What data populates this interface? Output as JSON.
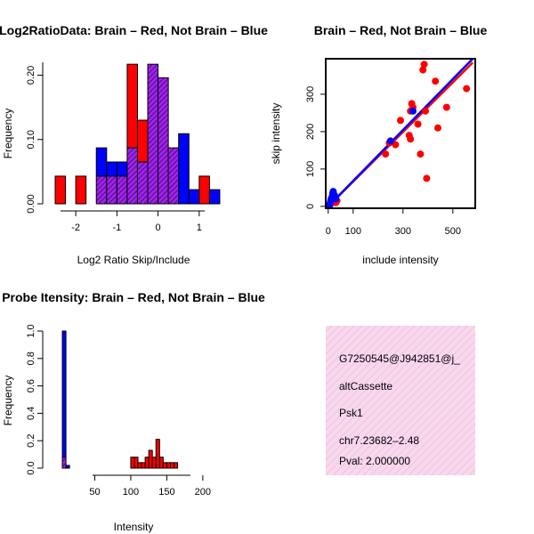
{
  "colors": {
    "red": "#ff0000",
    "blue": "#0000ff",
    "overlap": "#a020f0",
    "hatch": "#000000",
    "info_bg": "#f8d8ec",
    "info_hatch": "#f0b0d8",
    "pval": "#c00000"
  },
  "chart_data": [
    {
      "type": "bar",
      "subtype": "overlaid-histogram",
      "title": "Log2RatioData: Brain – Red, Not Brain – Blue",
      "xlabel": "Log2 Ratio Skip/Include",
      "ylabel": "Frequency",
      "xlim": [
        -2.5,
        1.35
      ],
      "ylim": [
        0,
        0.22
      ],
      "xticks": [
        -2,
        -1,
        0,
        1
      ],
      "yticks": [
        0.0,
        0.1,
        0.2
      ],
      "yticklabels": [
        "0.00",
        "0.10",
        "0.20"
      ],
      "bins": [
        {
          "x0": -2.5,
          "x1": -2.25,
          "red": 0.043,
          "blue": 0
        },
        {
          "x0": -2.0,
          "x1": -1.75,
          "red": 0.043,
          "blue": 0
        },
        {
          "x0": -1.5,
          "x1": -1.25,
          "red": 0.043,
          "blue": 0.087
        },
        {
          "x0": -1.25,
          "x1": -1.0,
          "red": 0.043,
          "blue": 0.065
        },
        {
          "x0": -1.0,
          "x1": -0.75,
          "red": 0.043,
          "blue": 0.065
        },
        {
          "x0": -0.75,
          "x1": -0.5,
          "red": 0.217,
          "blue": 0.087
        },
        {
          "x0": -0.5,
          "x1": -0.25,
          "red": 0.13,
          "blue": 0.065
        },
        {
          "x0": -0.25,
          "x1": 0.0,
          "red": 0.217,
          "blue": 0.217
        },
        {
          "x0": 0.0,
          "x1": 0.25,
          "red": 0.196,
          "blue": 0.196
        },
        {
          "x0": 0.25,
          "x1": 0.5,
          "red": 0.087,
          "blue": 0.087
        },
        {
          "x0": 0.5,
          "x1": 0.75,
          "red": 0,
          "blue": 0.109
        },
        {
          "x0": 0.75,
          "x1": 1.0,
          "red": 0,
          "blue": 0.022
        },
        {
          "x0": 1.0,
          "x1": 1.25,
          "red": 0.043,
          "blue": 0
        },
        {
          "x0": 1.25,
          "x1": 1.5,
          "red": 0,
          "blue": 0.022
        }
      ]
    },
    {
      "type": "scatter",
      "title": "Brain – Red, Not Brain – Blue",
      "xlabel": "include intensity",
      "ylabel": "skip intensity",
      "xlim": [
        -10,
        590
      ],
      "ylim": [
        -5,
        395
      ],
      "xticks": [
        0,
        100,
        300,
        500
      ],
      "yticks": [
        0,
        100,
        200,
        300
      ],
      "series": [
        {
          "name": "Brain",
          "color": "red",
          "points": [
            [
              5,
              5
            ],
            [
              8,
              10
            ],
            [
              12,
              8
            ],
            [
              15,
              15
            ],
            [
              20,
              12
            ],
            [
              25,
              20
            ],
            [
              30,
              10
            ],
            [
              35,
              15
            ],
            [
              230,
              140
            ],
            [
              245,
              170
            ],
            [
              270,
              165
            ],
            [
              290,
              230
            ],
            [
              325,
              190
            ],
            [
              330,
              180
            ],
            [
              330,
              255
            ],
            [
              335,
              275
            ],
            [
              340,
              265
            ],
            [
              360,
              220
            ],
            [
              370,
              140
            ],
            [
              380,
              365
            ],
            [
              385,
              380
            ],
            [
              390,
              255
            ],
            [
              395,
              75
            ],
            [
              430,
              335
            ],
            [
              440,
              210
            ],
            [
              475,
              265
            ],
            [
              555,
              315
            ]
          ],
          "fit": {
            "x": [
              0,
              580
            ],
            "y": [
              0,
              385
            ]
          }
        },
        {
          "name": "Not Brain",
          "color": "blue",
          "points": [
            [
              5,
              2
            ],
            [
              8,
              8
            ],
            [
              10,
              15
            ],
            [
              12,
              20
            ],
            [
              15,
              25
            ],
            [
              18,
              35
            ],
            [
              20,
              40
            ],
            [
              25,
              30
            ],
            [
              30,
              20
            ],
            [
              250,
              175
            ],
            [
              340,
              255
            ]
          ],
          "fit": {
            "x": [
              0,
              580
            ],
            "y": [
              0,
              395
            ]
          }
        }
      ]
    },
    {
      "type": "bar",
      "subtype": "overlaid-histogram",
      "title": "Probe Itensity: Brain – Red, Not Brain – Blue",
      "xlabel": "Intensity",
      "ylabel": "Frequency",
      "xlim": [
        0,
        215
      ],
      "ylim": [
        0,
        1.0
      ],
      "xticks": [
        50,
        100,
        150,
        200
      ],
      "yticks": [
        0.0,
        0.2,
        0.4,
        0.6,
        0.8,
        1.0
      ],
      "yticklabels": [
        "0.0",
        "0.2",
        "0.4",
        "0.6",
        "0.8",
        "1.0"
      ],
      "bins": [
        {
          "x0": 5,
          "x1": 10,
          "red": 0.08,
          "blue": 1.0
        },
        {
          "x0": 10,
          "x1": 15,
          "red": 0,
          "blue": 0.02
        },
        {
          "x0": 100,
          "x1": 105,
          "red": 0.08,
          "blue": 0
        },
        {
          "x0": 105,
          "x1": 110,
          "red": 0.08,
          "blue": 0
        },
        {
          "x0": 110,
          "x1": 115,
          "red": 0.04,
          "blue": 0
        },
        {
          "x0": 115,
          "x1": 120,
          "red": 0.04,
          "blue": 0
        },
        {
          "x0": 120,
          "x1": 125,
          "red": 0.08,
          "blue": 0
        },
        {
          "x0": 125,
          "x1": 130,
          "red": 0.13,
          "blue": 0
        },
        {
          "x0": 130,
          "x1": 135,
          "red": 0.08,
          "blue": 0
        },
        {
          "x0": 135,
          "x1": 140,
          "red": 0.21,
          "blue": 0
        },
        {
          "x0": 140,
          "x1": 145,
          "red": 0.08,
          "blue": 0
        },
        {
          "x0": 145,
          "x1": 150,
          "red": 0.04,
          "blue": 0
        },
        {
          "x0": 150,
          "x1": 155,
          "red": 0.04,
          "blue": 0
        },
        {
          "x0": 155,
          "x1": 160,
          "red": 0.04,
          "blue": 0
        },
        {
          "x0": 160,
          "x1": 165,
          "red": 0.04,
          "blue": 0
        }
      ]
    }
  ],
  "info_panel": {
    "line1": "G7250545@J942851@j_",
    "line2": "altCassette",
    "line3": "Psk1",
    "line4": "chr7.23682–2.48",
    "pval": "Pval: 2.000000"
  }
}
